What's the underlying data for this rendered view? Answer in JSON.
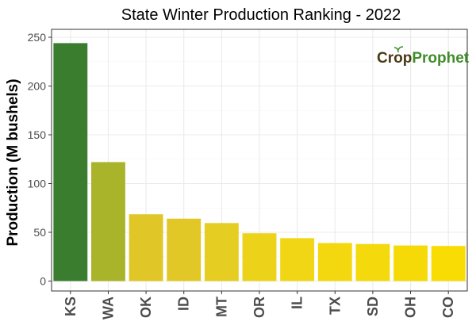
{
  "chart_data": {
    "type": "bar",
    "title": "State Winter  Production Ranking - 2022",
    "xlabel": "",
    "ylabel": "Production (M bushels)",
    "categories": [
      "KS",
      "WA",
      "OK",
      "ID",
      "MT",
      "OR",
      "IL",
      "TX",
      "SD",
      "OH",
      "CO"
    ],
    "values": [
      244,
      122,
      68.5,
      64,
      59.5,
      49,
      44,
      39,
      38,
      36.5,
      36
    ],
    "bar_colors": [
      "#3a7d2e",
      "#a9b42a",
      "#e0c626",
      "#e2c826",
      "#e6cd22",
      "#ecd31a",
      "#f0d614",
      "#f3d810",
      "#f4d90c",
      "#f6da08",
      "#f8dc04"
    ],
    "ylim": [
      0,
      252
    ],
    "yticks": [
      0,
      50,
      100,
      150,
      200,
      250
    ],
    "grid": true,
    "legend": "none",
    "colors": {
      "panel_background": "#ffffff",
      "panel_border": "#333333",
      "grid_major": "#ebebeb",
      "grid_minor": "#f5f5f5"
    }
  },
  "logo": {
    "text_crop": "Crop",
    "text_prophet": "Prophet",
    "icon": "sprout-icon"
  }
}
